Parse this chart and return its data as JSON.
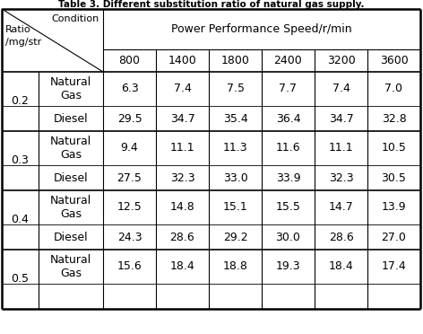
{
  "title": "Table 3. Different substitution ratio of natural gas supply.",
  "header_top": "Power Performance Speed/r/min",
  "speed_cols": [
    "800",
    "1400",
    "1800",
    "2400",
    "3200",
    "3600"
  ],
  "rows": [
    {
      "ratio": "0.2",
      "fuel": "Natural\nGas",
      "values": [
        "6.3",
        "7.4",
        "7.5",
        "7.7",
        "7.4",
        "7.0"
      ]
    },
    {
      "ratio": "",
      "fuel": "Diesel",
      "values": [
        "29.5",
        "34.7",
        "35.4",
        "36.4",
        "34.7",
        "32.8"
      ]
    },
    {
      "ratio": "0.3",
      "fuel": "Natural\nGas",
      "values": [
        "9.4",
        "11.1",
        "11.3",
        "11.6",
        "11.1",
        "10.5"
      ]
    },
    {
      "ratio": "",
      "fuel": "Diesel",
      "values": [
        "27.5",
        "32.3",
        "33.0",
        "33.9",
        "32.3",
        "30.5"
      ]
    },
    {
      "ratio": "0.4",
      "fuel": "Natural\nGas",
      "values": [
        "12.5",
        "14.8",
        "15.1",
        "15.5",
        "14.7",
        "13.9"
      ]
    },
    {
      "ratio": "",
      "fuel": "Diesel",
      "values": [
        "24.3",
        "28.6",
        "29.2",
        "30.0",
        "28.6",
        "27.0"
      ]
    },
    {
      "ratio": "0.5",
      "fuel": "Natural\nGas",
      "values": [
        "15.6",
        "18.4",
        "18.8",
        "19.3",
        "18.4",
        "17.4"
      ]
    },
    {
      "ratio": "",
      "fuel": "",
      "values": [
        "",
        "",
        "",
        "",
        "",
        ""
      ]
    }
  ],
  "bg_color": "#ffffff",
  "line_color": "#000000",
  "title_fontsize": 7.5,
  "header_fontsize": 9,
  "data_fontsize": 9,
  "diag_label_fontsize": 8
}
